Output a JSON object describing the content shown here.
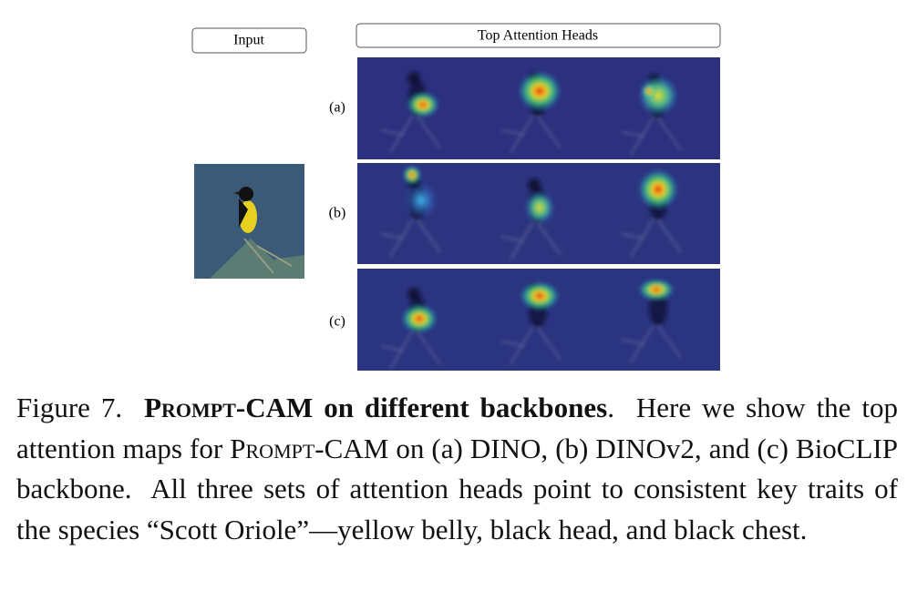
{
  "figure": {
    "input_label": "Input",
    "heads_label": "Top Attention Heads",
    "row_labels": [
      "(a)",
      "(b)",
      "(c)"
    ]
  },
  "caption": {
    "figure_label": "Figure 7.",
    "title_method": "Prompt-CAM",
    "title_rest": " on different backbones",
    "text_1": ".  Here we show the top attention maps for ",
    "method": "Prompt-CAM",
    "text_2": " on (a) DINO, (b) DINOv2, and (c) BioCLIP backbone.  All three sets of attention heads point to consistent key traits of the species “Scott Oriole”—yellow belly, black head, and black chest."
  }
}
